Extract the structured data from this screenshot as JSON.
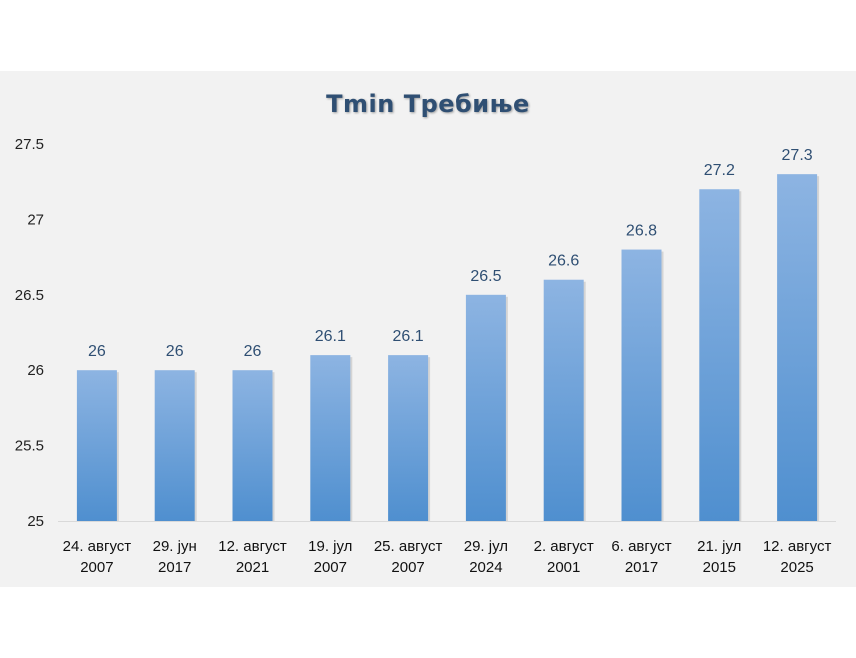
{
  "chart_data": {
    "type": "bar",
    "title": "Tmin Требиње",
    "categories": [
      [
        "24. август",
        "2007"
      ],
      [
        "29. јун",
        "2017"
      ],
      [
        "12. август",
        "2021"
      ],
      [
        "19. јул",
        "2007"
      ],
      [
        "25. август",
        "2007"
      ],
      [
        "29. јул",
        "2024"
      ],
      [
        "2. август",
        "2001"
      ],
      [
        "6. август",
        "2017"
      ],
      [
        "21. јул",
        "2015"
      ],
      [
        "12. август",
        "2025"
      ]
    ],
    "values": [
      26,
      26,
      26,
      26.1,
      26.1,
      26.5,
      26.6,
      26.8,
      27.2,
      27.3
    ],
    "data_labels": [
      "26",
      "26",
      "26",
      "26.1",
      "26.1",
      "26.5",
      "26.6",
      "26.8",
      "27.2",
      "27.3"
    ],
    "ylim": [
      25,
      27.5
    ],
    "yticks": [
      "25",
      "25.5",
      "26",
      "26.5",
      "27",
      "27.5"
    ],
    "ytick_values": [
      25,
      25.5,
      26,
      26.5,
      27,
      27.5
    ],
    "xlabel": "",
    "ylabel": "",
    "grid": false,
    "legend": "none",
    "colors": {
      "bar_top": "#8db4e2",
      "bar_bottom": "#4f8fcf",
      "title": "#2f4f73",
      "panel": "#f2f2f2"
    }
  }
}
